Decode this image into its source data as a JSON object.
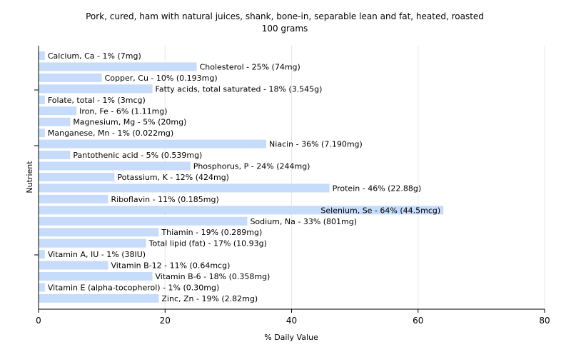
{
  "chart_data": {
    "type": "bar",
    "orientation": "horizontal",
    "title": "Pork, cured, ham with natural juices, shank, bone-in, separable lean and fat, heated, roasted",
    "subtitle": "100 grams",
    "xlabel": "% Daily Value",
    "ylabel": "Nutrient",
    "xlim": [
      0,
      80
    ],
    "xticks": [
      0,
      20,
      40,
      60,
      80
    ],
    "grid": true,
    "bar_color": "#c6dcfa",
    "categories": [
      "Calcium, Ca",
      "Cholesterol",
      "Copper, Cu",
      "Fatty acids, total saturated",
      "Folate, total",
      "Iron, Fe",
      "Magnesium, Mg",
      "Manganese, Mn",
      "Niacin",
      "Pantothenic acid",
      "Phosphorus, P",
      "Potassium, K",
      "Protein",
      "Riboflavin",
      "Selenium, Se",
      "Sodium, Na",
      "Thiamin",
      "Total lipid (fat)",
      "Vitamin A, IU",
      "Vitamin B-12",
      "Vitamin B-6",
      "Vitamin E (alpha-tocopherol)",
      "Zinc, Zn"
    ],
    "values": [
      1,
      25,
      10,
      18,
      1,
      6,
      5,
      1,
      36,
      5,
      24,
      12,
      46,
      11,
      64,
      33,
      19,
      17,
      1,
      11,
      18,
      1,
      19
    ],
    "labels": [
      "Calcium, Ca - 1% (7mg)",
      "Cholesterol - 25% (74mg)",
      "Copper, Cu - 10% (0.193mg)",
      "Fatty acids, total saturated - 18% (3.545g)",
      "Folate, total - 1% (3mcg)",
      "Iron, Fe - 6% (1.11mg)",
      "Magnesium, Mg - 5% (20mg)",
      "Manganese, Mn - 1% (0.022mg)",
      "Niacin - 36% (7.190mg)",
      "Pantothenic acid - 5% (0.539mg)",
      "Phosphorus, P - 24% (244mg)",
      "Potassium, K - 12% (424mg)",
      "Protein - 46% (22.88g)",
      "Riboflavin - 11% (0.185mg)",
      "Selenium, Se - 64% (44.5mcg)",
      "Sodium, Na - 33% (801mg)",
      "Thiamin - 19% (0.289mg)",
      "Total lipid (fat) - 17% (10.93g)",
      "Vitamin A, IU - 1% (38IU)",
      "Vitamin B-12 - 11% (0.64mcg)",
      "Vitamin B-6 - 18% (0.358mg)",
      "Vitamin E (alpha-tocopherol) - 1% (0.30mg)",
      "Zinc, Zn - 19% (2.82mg)"
    ]
  }
}
